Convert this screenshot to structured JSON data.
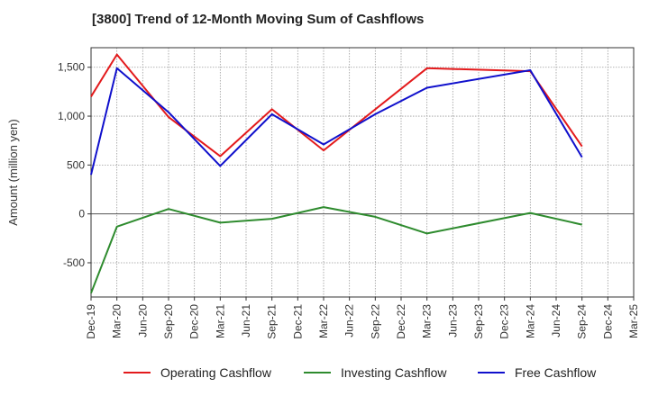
{
  "chart_data": {
    "type": "line",
    "title": "[3800]  Trend of 12-Month Moving Sum of Cashflows",
    "ylabel": "Amount (million yen)",
    "xlabel": "",
    "ylim": [
      -850,
      1700
    ],
    "yticks": [
      -500,
      0,
      500,
      1000,
      1500
    ],
    "ytick_labels": [
      "-500",
      "0",
      "500",
      "1,000",
      "1,500"
    ],
    "categories": [
      "Dec-19",
      "Mar-20",
      "Jun-20",
      "Sep-20",
      "Dec-20",
      "Mar-21",
      "Jun-21",
      "Sep-21",
      "Dec-21",
      "Mar-22",
      "Jun-22",
      "Sep-22",
      "Dec-22",
      "Mar-23",
      "Jun-23",
      "Sep-23",
      "Dec-23",
      "Mar-24",
      "Jun-24",
      "Sep-24",
      "Dec-24",
      "Mar-25"
    ],
    "grid": true,
    "legend_position": "bottom",
    "series": [
      {
        "name": "Operating Cashflow",
        "color": "#e31a1c",
        "values": [
          1200,
          1630,
          null,
          990,
          null,
          590,
          null,
          1070,
          null,
          650,
          null,
          null,
          null,
          1490,
          null,
          null,
          null,
          1460,
          null,
          690,
          null,
          null
        ]
      },
      {
        "name": "Investing Cashflow",
        "color": "#2e8b2e",
        "values": [
          -810,
          -130,
          null,
          50,
          null,
          -90,
          null,
          -50,
          null,
          70,
          null,
          -30,
          null,
          -200,
          null,
          null,
          null,
          10,
          null,
          -110,
          null,
          null
        ]
      },
      {
        "name": "Free Cashflow",
        "color": "#1010cc",
        "values": [
          400,
          1490,
          null,
          1040,
          null,
          490,
          null,
          1020,
          null,
          710,
          null,
          1020,
          null,
          1290,
          null,
          null,
          null,
          1470,
          null,
          580,
          null,
          null
        ]
      }
    ]
  }
}
